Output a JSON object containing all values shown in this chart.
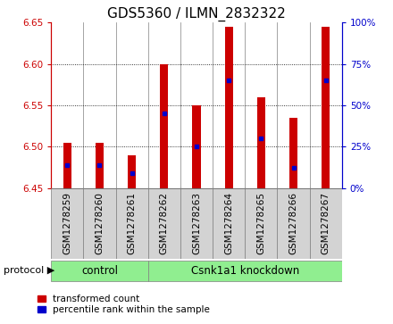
{
  "title": "GDS5360 / ILMN_2832322",
  "samples": [
    "GSM1278259",
    "GSM1278260",
    "GSM1278261",
    "GSM1278262",
    "GSM1278263",
    "GSM1278264",
    "GSM1278265",
    "GSM1278266",
    "GSM1278267"
  ],
  "bar_tops": [
    6.505,
    6.505,
    6.49,
    6.6,
    6.55,
    6.645,
    6.56,
    6.535,
    6.645
  ],
  "percentile_ranks": [
    14,
    14,
    9,
    45,
    25,
    65,
    30,
    12,
    65
  ],
  "bar_bottom": 6.45,
  "ylim": [
    6.45,
    6.65
  ],
  "yticks": [
    6.45,
    6.5,
    6.55,
    6.6,
    6.65
  ],
  "right_yticks": [
    0,
    25,
    50,
    75,
    100
  ],
  "bar_color": "#cc0000",
  "dot_color": "#0000cc",
  "n_control": 3,
  "n_knockdown": 6,
  "control_label": "control",
  "knockdown_label": "Csnk1a1 knockdown",
  "protocol_label": "protocol",
  "legend_red": "transformed count",
  "legend_blue": "percentile rank within the sample",
  "sample_bg": "#d3d3d3",
  "green_bg": "#90ee90",
  "bar_width": 0.25,
  "title_fontsize": 11,
  "tick_fontsize": 7.5,
  "label_fontsize": 8.5,
  "proto_fontsize": 8
}
